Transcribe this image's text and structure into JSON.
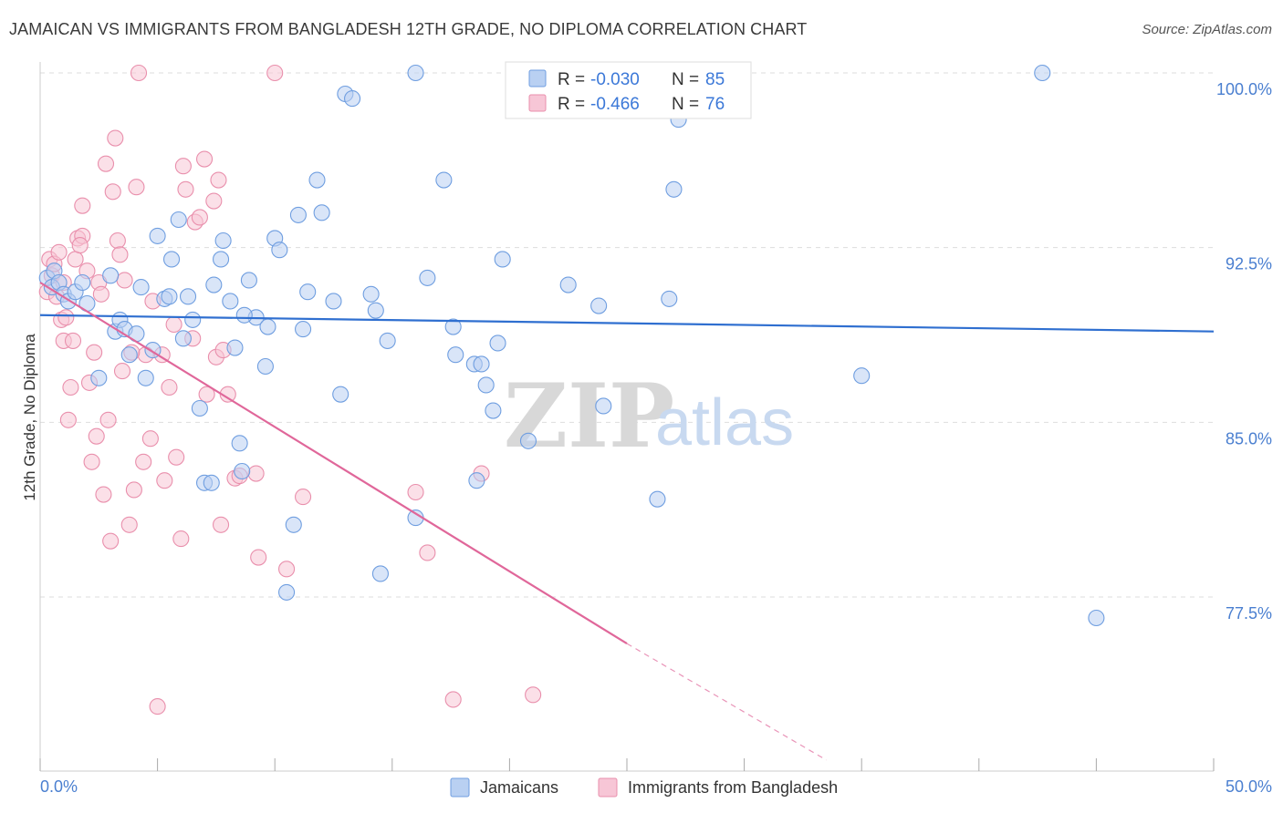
{
  "title": "JAMAICAN VS IMMIGRANTS FROM BANGLADESH 12TH GRADE, NO DIPLOMA CORRELATION CHART",
  "source": "Source: ZipAtlas.com",
  "watermark": {
    "zip": "ZIP",
    "atlas": "atlas"
  },
  "colors": {
    "jamaicans_fill": "#b9d0f2",
    "jamaicans_stroke": "#6f9ee0",
    "jamaicans_line": "#2f6fd0",
    "bangladesh_fill": "#f7c6d6",
    "bangladesh_stroke": "#e98fac",
    "bangladesh_line": "#e0679a",
    "grid": "#dddddd",
    "tick_text": "#4a7fd0"
  },
  "legend_top": {
    "rows": [
      {
        "r_label": "R =",
        "r_value": "-0.030",
        "n_label": "N =",
        "n_value": "85"
      },
      {
        "r_label": "R =",
        "r_value": "-0.466",
        "n_label": "N =",
        "n_value": "76"
      }
    ]
  },
  "legend_bottom": {
    "items": [
      {
        "label": "Jamaicans"
      },
      {
        "label": "Immigrants from Bangladesh"
      }
    ]
  },
  "chart_data": {
    "type": "scatter",
    "title": "JAMAICAN VS IMMIGRANTS FROM BANGLADESH 12TH GRADE, NO DIPLOMA CORRELATION CHART",
    "xlabel": "",
    "ylabel": "12th Grade, No Diploma",
    "xlim": [
      0,
      50
    ],
    "ylim": [
      70.5,
      100.7
    ],
    "x_tick_labels": [
      "0.0%",
      "50.0%"
    ],
    "y_ticks": [
      77.5,
      85.0,
      92.5,
      100.0
    ],
    "y_tick_labels": [
      "77.5%",
      "85.0%",
      "92.5%",
      "100.0%"
    ],
    "grid": true,
    "legend_position": "top-center",
    "series": [
      {
        "name": "Jamaicans",
        "r": -0.03,
        "n": 85,
        "trend": {
          "x": [
            0,
            50
          ],
          "y": [
            89.6,
            88.9
          ]
        },
        "points": [
          [
            0.3,
            91.2
          ],
          [
            0.5,
            90.8
          ],
          [
            0.6,
            91.5
          ],
          [
            0.8,
            91.0
          ],
          [
            1.0,
            90.5
          ],
          [
            1.2,
            90.2
          ],
          [
            1.5,
            90.6
          ],
          [
            1.8,
            91.0
          ],
          [
            2.0,
            90.1
          ],
          [
            2.5,
            86.9
          ],
          [
            3.0,
            91.3
          ],
          [
            3.2,
            88.9
          ],
          [
            3.4,
            89.4
          ],
          [
            3.6,
            89.0
          ],
          [
            3.8,
            87.9
          ],
          [
            4.1,
            88.8
          ],
          [
            4.3,
            90.8
          ],
          [
            4.5,
            86.9
          ],
          [
            4.8,
            88.1
          ],
          [
            5.0,
            93.0
          ],
          [
            5.3,
            90.3
          ],
          [
            5.5,
            90.4
          ],
          [
            5.6,
            92.0
          ],
          [
            5.9,
            93.7
          ],
          [
            6.1,
            88.6
          ],
          [
            6.3,
            90.4
          ],
          [
            6.5,
            89.4
          ],
          [
            6.8,
            85.6
          ],
          [
            7.0,
            82.4
          ],
          [
            7.3,
            82.4
          ],
          [
            7.4,
            90.9
          ],
          [
            7.7,
            92.0
          ],
          [
            7.8,
            92.8
          ],
          [
            8.1,
            90.2
          ],
          [
            8.3,
            88.2
          ],
          [
            8.5,
            84.1
          ],
          [
            8.6,
            82.9
          ],
          [
            8.9,
            91.1
          ],
          [
            9.2,
            89.5
          ],
          [
            9.6,
            87.4
          ],
          [
            9.7,
            89.1
          ],
          [
            10.0,
            92.9
          ],
          [
            10.2,
            92.4
          ],
          [
            10.5,
            77.7
          ],
          [
            10.8,
            80.6
          ],
          [
            11.0,
            93.9
          ],
          [
            11.2,
            89.0
          ],
          [
            11.4,
            90.6
          ],
          [
            11.8,
            95.4
          ],
          [
            12.0,
            94.0
          ],
          [
            12.5,
            90.2
          ],
          [
            12.8,
            86.2
          ],
          [
            13.0,
            99.1
          ],
          [
            13.3,
            98.9
          ],
          [
            14.1,
            90.5
          ],
          [
            14.3,
            89.8
          ],
          [
            14.5,
            78.5
          ],
          [
            14.8,
            88.5
          ],
          [
            16.0,
            100.0
          ],
          [
            16.0,
            80.9
          ],
          [
            16.5,
            91.2
          ],
          [
            17.2,
            95.4
          ],
          [
            17.6,
            89.1
          ],
          [
            17.7,
            87.9
          ],
          [
            18.5,
            87.5
          ],
          [
            18.6,
            82.5
          ],
          [
            18.8,
            87.5
          ],
          [
            19.0,
            86.6
          ],
          [
            19.3,
            85.5
          ],
          [
            19.5,
            88.4
          ],
          [
            19.7,
            92.0
          ],
          [
            20.8,
            84.2
          ],
          [
            22.5,
            90.9
          ],
          [
            23.0,
            100.0
          ],
          [
            23.8,
            90.0
          ],
          [
            24.0,
            85.7
          ],
          [
            26.3,
            81.7
          ],
          [
            26.5,
            100.0
          ],
          [
            26.8,
            90.3
          ],
          [
            27.0,
            95.0
          ],
          [
            27.2,
            98.0
          ],
          [
            35.0,
            87.0
          ],
          [
            42.7,
            100.0
          ],
          [
            45.0,
            76.6
          ],
          [
            8.7,
            89.6
          ]
        ]
      },
      {
        "name": "Immigrants from Bangladesh",
        "r": -0.466,
        "n": 76,
        "trend": {
          "x": [
            0,
            25
          ],
          "y": [
            91.0,
            75.5
          ]
        },
        "trend_extrapolated": {
          "x": [
            25,
            33.5
          ],
          "y": [
            75.5,
            70.5
          ]
        },
        "points": [
          [
            0.3,
            90.6
          ],
          [
            0.4,
            92.0
          ],
          [
            0.5,
            91.3
          ],
          [
            0.6,
            91.8
          ],
          [
            0.7,
            90.4
          ],
          [
            0.8,
            92.3
          ],
          [
            0.9,
            89.4
          ],
          [
            1.0,
            88.5
          ],
          [
            1.0,
            91.0
          ],
          [
            1.2,
            85.1
          ],
          [
            1.3,
            86.5
          ],
          [
            1.4,
            88.5
          ],
          [
            1.5,
            92.0
          ],
          [
            1.6,
            92.9
          ],
          [
            1.8,
            93.0
          ],
          [
            1.8,
            94.3
          ],
          [
            2.0,
            91.5
          ],
          [
            2.1,
            86.7
          ],
          [
            2.2,
            83.3
          ],
          [
            2.3,
            88.0
          ],
          [
            2.4,
            84.4
          ],
          [
            2.5,
            91.0
          ],
          [
            2.6,
            90.5
          ],
          [
            2.7,
            81.9
          ],
          [
            2.8,
            96.1
          ],
          [
            2.9,
            85.1
          ],
          [
            3.0,
            79.9
          ],
          [
            3.1,
            94.9
          ],
          [
            3.2,
            97.2
          ],
          [
            3.3,
            92.8
          ],
          [
            3.4,
            92.2
          ],
          [
            3.5,
            87.2
          ],
          [
            3.6,
            91.1
          ],
          [
            3.8,
            80.6
          ],
          [
            4.0,
            82.1
          ],
          [
            4.1,
            95.1
          ],
          [
            4.2,
            100.0
          ],
          [
            4.4,
            83.3
          ],
          [
            4.5,
            87.9
          ],
          [
            4.7,
            84.3
          ],
          [
            4.8,
            90.2
          ],
          [
            5.0,
            72.8
          ],
          [
            5.3,
            82.5
          ],
          [
            5.5,
            86.5
          ],
          [
            5.7,
            89.2
          ],
          [
            5.8,
            83.5
          ],
          [
            6.0,
            80.0
          ],
          [
            6.1,
            96.0
          ],
          [
            6.2,
            95.0
          ],
          [
            6.5,
            88.6
          ],
          [
            6.6,
            93.6
          ],
          [
            6.8,
            93.8
          ],
          [
            7.0,
            96.3
          ],
          [
            7.1,
            86.2
          ],
          [
            7.4,
            94.5
          ],
          [
            7.5,
            87.8
          ],
          [
            7.6,
            95.4
          ],
          [
            7.7,
            80.6
          ],
          [
            7.8,
            88.1
          ],
          [
            8.0,
            86.2
          ],
          [
            8.3,
            82.6
          ],
          [
            8.5,
            82.7
          ],
          [
            9.2,
            82.8
          ],
          [
            9.3,
            79.2
          ],
          [
            10.0,
            100.0
          ],
          [
            10.5,
            78.7
          ],
          [
            11.2,
            81.8
          ],
          [
            16.0,
            82.0
          ],
          [
            16.5,
            79.4
          ],
          [
            17.6,
            73.1
          ],
          [
            18.8,
            82.8
          ],
          [
            21.0,
            73.3
          ],
          [
            1.1,
            89.5
          ],
          [
            1.7,
            92.6
          ],
          [
            3.9,
            88.0
          ],
          [
            5.2,
            87.9
          ]
        ]
      }
    ]
  }
}
